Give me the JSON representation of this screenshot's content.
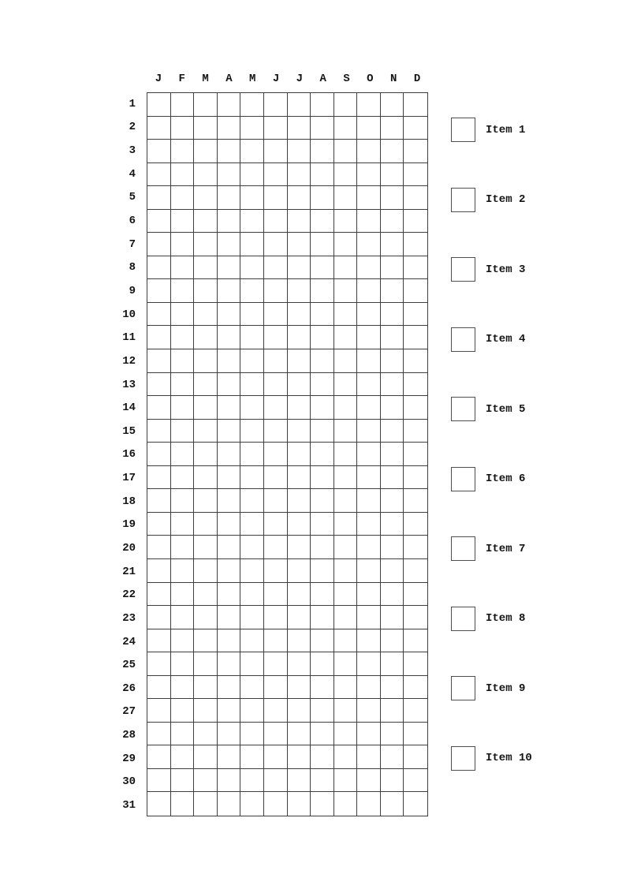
{
  "tracker": {
    "months": [
      "J",
      "F",
      "M",
      "A",
      "M",
      "J",
      "J",
      "A",
      "S",
      "O",
      "N",
      "D"
    ],
    "days": [
      1,
      2,
      3,
      4,
      5,
      6,
      7,
      8,
      9,
      10,
      11,
      12,
      13,
      14,
      15,
      16,
      17,
      18,
      19,
      20,
      21,
      22,
      23,
      24,
      25,
      26,
      27,
      28,
      29,
      30,
      31
    ],
    "items": [
      {
        "label": "Item 1",
        "checked": false
      },
      {
        "label": "Item 2",
        "checked": false
      },
      {
        "label": "Item 3",
        "checked": false
      },
      {
        "label": "Item 4",
        "checked": false
      },
      {
        "label": "Item 5",
        "checked": false
      },
      {
        "label": "Item 6",
        "checked": false
      },
      {
        "label": "Item 7",
        "checked": false
      },
      {
        "label": "Item 8",
        "checked": false
      },
      {
        "label": "Item 9",
        "checked": false
      },
      {
        "label": "Item 10",
        "checked": false
      }
    ],
    "colors": {
      "grid_line": "#3f3f3f",
      "checkbox_line": "#4f4f4f",
      "text": "#141414",
      "background": "#ffffff"
    }
  }
}
